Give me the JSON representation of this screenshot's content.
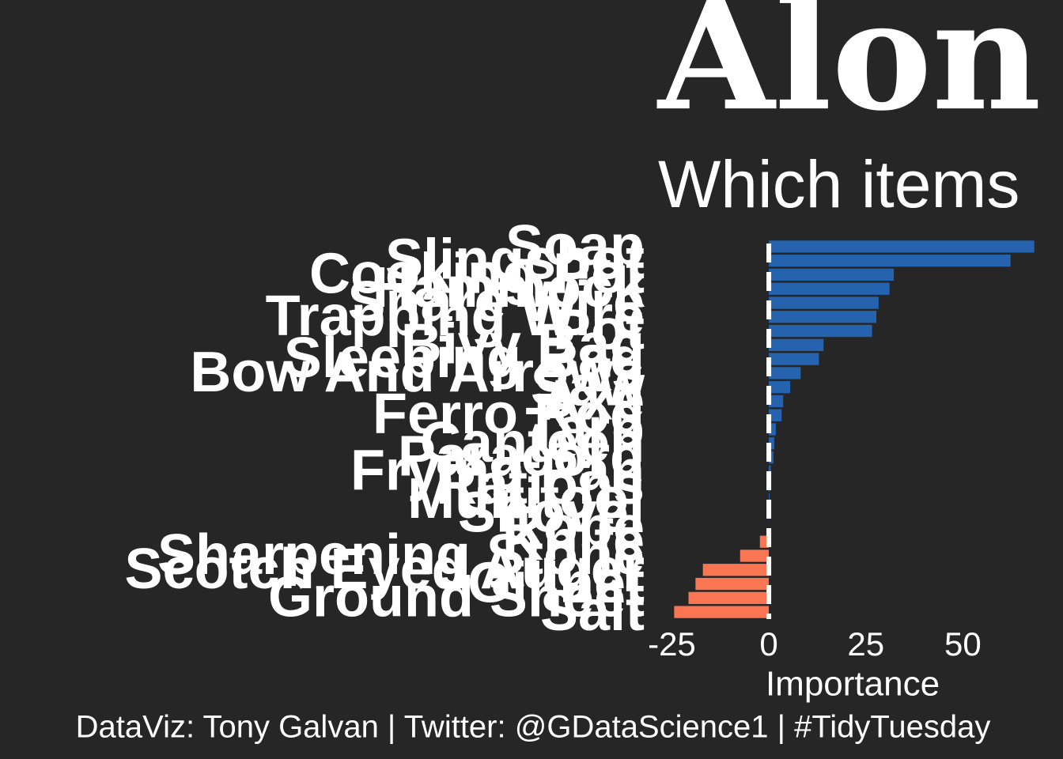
{
  "chart_data": {
    "type": "barh",
    "title": "Alon",
    "subtitle": "Which items",
    "xlabel": "Importance",
    "caption": "DataViz: Tony Galvan  |  Twitter: @GDataScience1  |  #TidyTuesday",
    "categories": [
      "Soap",
      "Slingshot",
      "Cooking Pot",
      "Hammock",
      "Snare Wire",
      "Trapping Wire",
      "Pot",
      "Bivy Bag",
      "Sleeping Bag",
      "Bow And Arrows",
      "Saw",
      "Axe",
      "Ferro Rod",
      "Tarp",
      "Canteen",
      "Paracord",
      "Frying Pan",
      "Rations",
      "Multitool",
      "Shovel",
      "Rope",
      "Knife",
      "Sharpening Stone",
      "Scotch Eyed Auger",
      "Gillnet",
      "Ground Sheet",
      "Salt"
    ],
    "values": [
      68.4,
      62.3,
      32.2,
      31.1,
      28.3,
      27.7,
      26.6,
      14.1,
      12.9,
      8.2,
      5.5,
      3.7,
      3.3,
      1.8,
      1.4,
      1.2,
      0.5,
      0.3,
      0.2,
      0.1,
      0,
      -2.3,
      -7.4,
      -17,
      -18.9,
      -20.7,
      -24.4
    ],
    "color_positive": "#2563ae",
    "color_negative": "#fa7652",
    "xlim": [
      -31,
      75
    ],
    "xticks": [
      -25,
      0,
      25,
      50
    ],
    "zero_line": true
  }
}
